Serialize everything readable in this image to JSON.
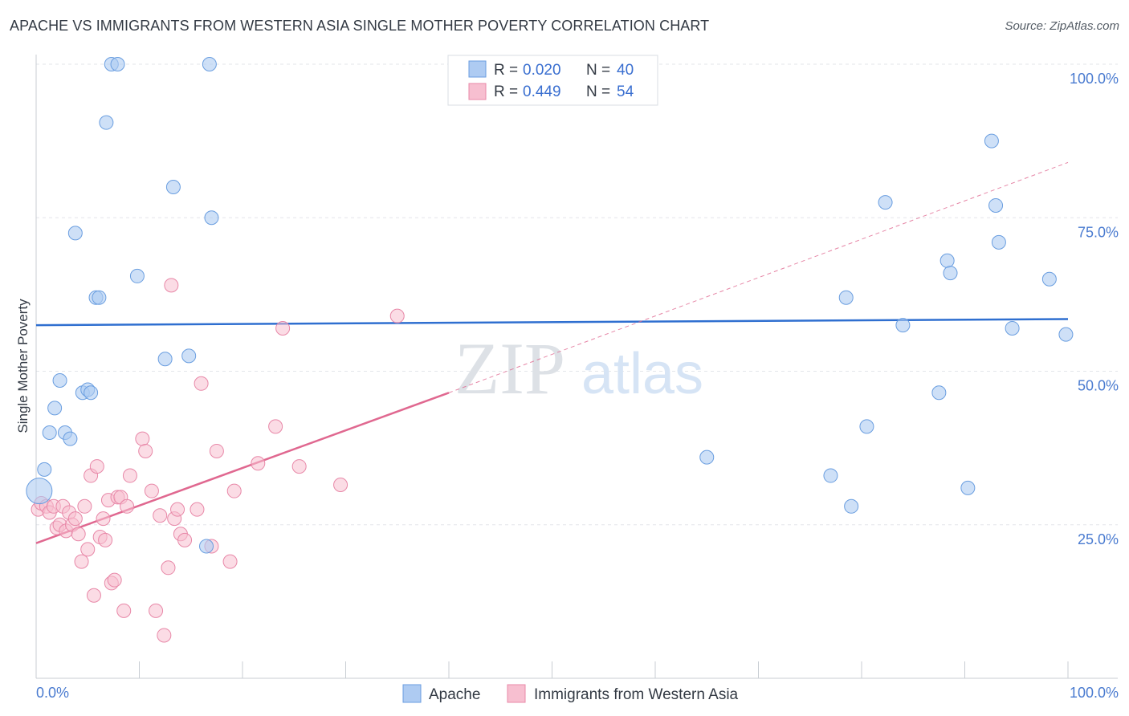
{
  "title": "APACHE VS IMMIGRANTS FROM WESTERN ASIA SINGLE MOTHER POVERTY CORRELATION CHART",
  "source": "Source: ZipAtlas.com",
  "watermark": {
    "zip": "ZIP",
    "atlas": "atlas"
  },
  "legend": {
    "rows": [
      {
        "r_label": "R =",
        "r_value": "0.020",
        "n_label": "N =",
        "n_value": "40"
      },
      {
        "r_label": "R =",
        "r_value": "0.449",
        "n_label": "N =",
        "n_value": "54"
      }
    ]
  },
  "bottom_legend": [
    "Apache",
    "Immigrants from Western Asia"
  ],
  "colors": {
    "apache_fill": "#aecbf2",
    "apache_stroke": "#6a9ee0",
    "apache_line": "#2f6fd0",
    "wa_fill": "#f7bfd0",
    "wa_stroke": "#e888a8",
    "wa_line": "#e06890"
  },
  "chart_data": {
    "type": "scatter",
    "title": "APACHE VS IMMIGRANTS FROM WESTERN ASIA SINGLE MOTHER POVERTY CORRELATION CHART",
    "xlabel": "",
    "ylabel": "Single Mother Poverty",
    "xlim": [
      0,
      100
    ],
    "ylim": [
      0,
      100
    ],
    "x_tick_labels": [
      "0.0%",
      "100.0%"
    ],
    "y_tick_labels": [
      "25.0%",
      "50.0%",
      "75.0%",
      "100.0%"
    ],
    "y_ticks": [
      25,
      50,
      75,
      100
    ],
    "grid": true,
    "legend_position": "top-center",
    "series": [
      {
        "name": "Apache",
        "R": 0.02,
        "N": 40,
        "trend": {
          "x": [
            0,
            100
          ],
          "y": [
            57.5,
            58.5
          ],
          "style": "solid"
        },
        "points": [
          [
            0.3,
            30.5
          ],
          [
            0.8,
            34
          ],
          [
            1.3,
            40
          ],
          [
            1.8,
            44
          ],
          [
            2.3,
            48.5
          ],
          [
            2.8,
            40
          ],
          [
            3.3,
            39
          ],
          [
            3.8,
            72.5
          ],
          [
            4.5,
            46.5
          ],
          [
            5,
            47
          ],
          [
            5.3,
            46.5
          ],
          [
            5.8,
            62
          ],
          [
            6.1,
            62
          ],
          [
            6.8,
            90.5
          ],
          [
            7.3,
            100
          ],
          [
            7.9,
            100
          ],
          [
            9.8,
            65.5
          ],
          [
            12.5,
            52
          ],
          [
            13.3,
            80
          ],
          [
            14.8,
            52.5
          ],
          [
            16.5,
            21.5
          ],
          [
            16.8,
            100
          ],
          [
            17,
            75
          ],
          [
            65,
            36
          ],
          [
            77,
            33
          ],
          [
            78.5,
            62
          ],
          [
            79,
            28
          ],
          [
            80.5,
            41
          ],
          [
            82.3,
            77.5
          ],
          [
            84,
            57.5
          ],
          [
            87.5,
            46.5
          ],
          [
            88.3,
            68
          ],
          [
            88.6,
            66
          ],
          [
            90.3,
            31
          ],
          [
            92.6,
            87.5
          ],
          [
            93,
            77
          ],
          [
            93.3,
            71
          ],
          [
            94.6,
            57
          ],
          [
            98.2,
            65
          ],
          [
            99.8,
            56
          ]
        ]
      },
      {
        "name": "Immigrants from Western Asia",
        "R": 0.449,
        "N": 54,
        "trend": {
          "x": [
            0,
            40
          ],
          "y": [
            22,
            46.5
          ],
          "style": "solid",
          "extension": {
            "x": [
              40,
              100
            ],
            "y": [
              46.5,
              84
            ]
          }
        },
        "points": [
          [
            0.2,
            27.5
          ],
          [
            0.5,
            28.5
          ],
          [
            1,
            28
          ],
          [
            1.3,
            27
          ],
          [
            1.7,
            28
          ],
          [
            2,
            24.5
          ],
          [
            2.3,
            25
          ],
          [
            2.6,
            28
          ],
          [
            2.9,
            24
          ],
          [
            3.2,
            27
          ],
          [
            3.5,
            25
          ],
          [
            3.8,
            26
          ],
          [
            4.1,
            23.5
          ],
          [
            4.4,
            19
          ],
          [
            4.7,
            28
          ],
          [
            5,
            21
          ],
          [
            5.3,
            33
          ],
          [
            5.6,
            13.5
          ],
          [
            5.9,
            34.5
          ],
          [
            6.2,
            23
          ],
          [
            6.5,
            26
          ],
          [
            6.7,
            22.5
          ],
          [
            7,
            29
          ],
          [
            7.3,
            15.5
          ],
          [
            7.6,
            16
          ],
          [
            7.9,
            29.5
          ],
          [
            8.2,
            29.5
          ],
          [
            8.5,
            11
          ],
          [
            8.8,
            28
          ],
          [
            9.1,
            33
          ],
          [
            10.3,
            39
          ],
          [
            10.6,
            37
          ],
          [
            11.2,
            30.5
          ],
          [
            11.6,
            11
          ],
          [
            12,
            26.5
          ],
          [
            12.4,
            7
          ],
          [
            12.8,
            18
          ],
          [
            13.1,
            64
          ],
          [
            13.4,
            26
          ],
          [
            13.7,
            27.5
          ],
          [
            14,
            23.5
          ],
          [
            14.4,
            22.5
          ],
          [
            15.6,
            27.5
          ],
          [
            16,
            48
          ],
          [
            17,
            21.5
          ],
          [
            17.5,
            37
          ],
          [
            18.8,
            19
          ],
          [
            19.2,
            30.5
          ],
          [
            21.5,
            35
          ],
          [
            23.2,
            41
          ],
          [
            23.9,
            57
          ],
          [
            25.5,
            34.5
          ],
          [
            29.5,
            31.5
          ],
          [
            35,
            59
          ]
        ]
      }
    ]
  }
}
